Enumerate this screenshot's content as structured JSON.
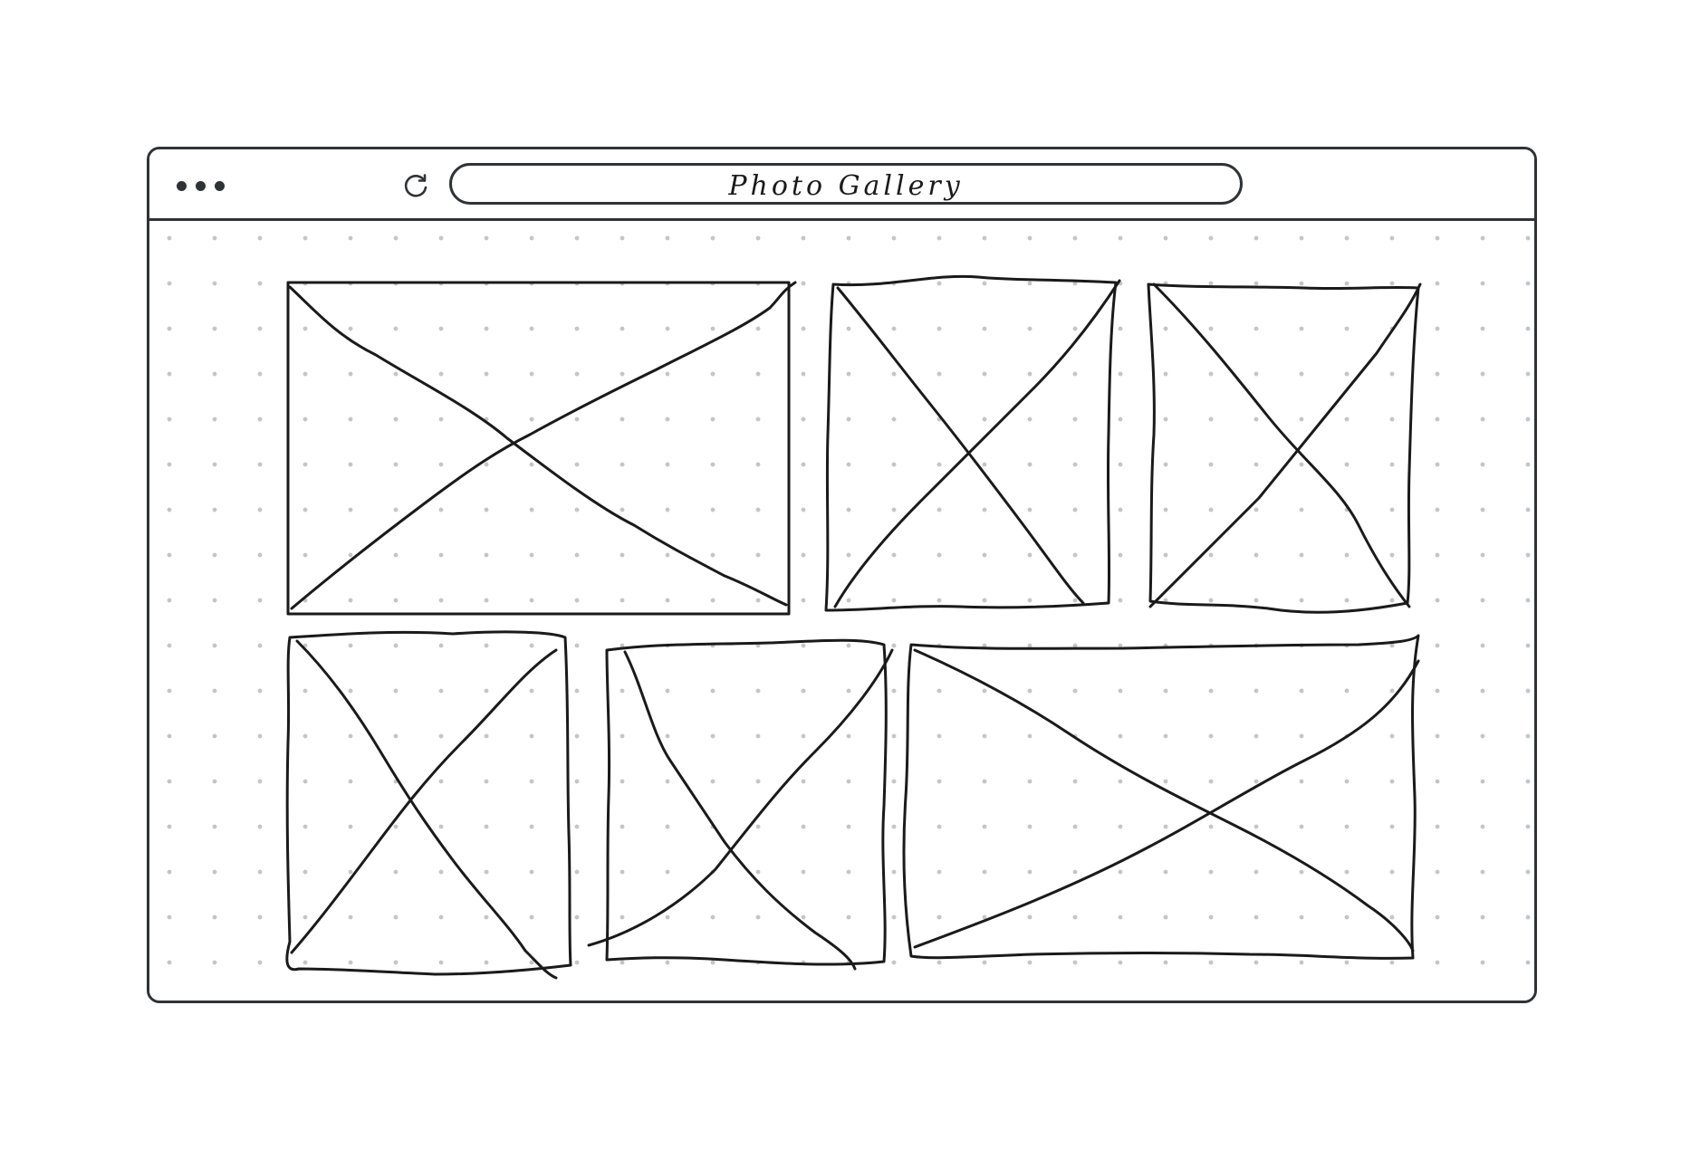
{
  "browser": {
    "address_bar_title": "Photo Gallery",
    "window_control_icon": "three-dots-icon",
    "reload_icon": "reload-icon"
  },
  "gallery": {
    "tiles": [
      {
        "row": 1,
        "position": 1,
        "placeholder": "image-placeholder-x",
        "orientation": "landscape"
      },
      {
        "row": 1,
        "position": 2,
        "placeholder": "image-placeholder-x",
        "orientation": "portrait"
      },
      {
        "row": 1,
        "position": 3,
        "placeholder": "image-placeholder-x",
        "orientation": "portrait"
      },
      {
        "row": 2,
        "position": 1,
        "placeholder": "image-placeholder-x",
        "orientation": "portrait"
      },
      {
        "row": 2,
        "position": 2,
        "placeholder": "image-placeholder-x",
        "orientation": "portrait"
      },
      {
        "row": 2,
        "position": 3,
        "placeholder": "image-placeholder-x",
        "orientation": "landscape"
      }
    ]
  },
  "colors": {
    "ink": "#1a1a1a",
    "frame": "#2f3336",
    "grid_dots": "#c3c6c9",
    "background": "#ffffff"
  }
}
